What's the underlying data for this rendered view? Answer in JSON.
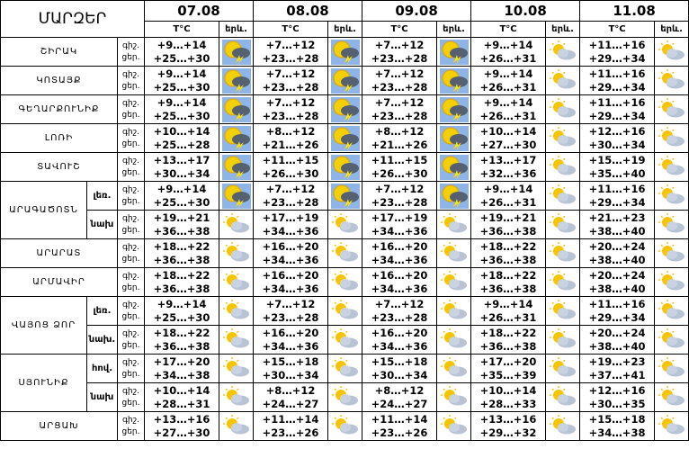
{
  "header": {
    "title": "ՄԱՐԶԵՐ",
    "dates": [
      "07.08",
      "08.08",
      "09.08",
      "10.08",
      "11.08"
    ],
    "temp_label": "T°C",
    "icon_label": "երև."
  },
  "periods": [
    "գիշ.",
    "ցեր."
  ],
  "regions": [
    {
      "name": "ՇԻՐԱԿ",
      "rows": [
        {
          "days": [
            [
              "+9…+14",
              "+25…+30"
            ],
            [
              "+7…+12",
              "+23…+28"
            ],
            [
              "+7…+12",
              "+23…+28"
            ],
            [
              "+9…+14",
              "+26…+31"
            ],
            [
              "+11…+16",
              "+29…+34"
            ]
          ]
        }
      ]
    },
    {
      "name": "ԿՈՏԱՅՔ",
      "rows": [
        {
          "days": [
            [
              "+9…+14",
              "+25…+30"
            ],
            [
              "+7…+12",
              "+23…+28"
            ],
            [
              "+7…+12",
              "+23…+28"
            ],
            [
              "+9…+14",
              "+26…+31"
            ],
            [
              "+11…+16",
              "+29…+34"
            ]
          ]
        }
      ]
    },
    {
      "name": "ԳԵՂԱՐՔՈՒՆԻՔ",
      "rows": [
        {
          "days": [
            [
              "+9…+14",
              "+25…+30"
            ],
            [
              "+7…+12",
              "+23…+28"
            ],
            [
              "+7…+12",
              "+23…+28"
            ],
            [
              "+9…+14",
              "+26…+31"
            ],
            [
              "+11…+16",
              "+29…+34"
            ]
          ]
        }
      ]
    },
    {
      "name": "ԼՈՌԻ",
      "rows": [
        {
          "days": [
            [
              "+10…+14",
              "+25…+28"
            ],
            [
              "+8…+12",
              "+21…+26"
            ],
            [
              "+8…+12",
              "+21…+26"
            ],
            [
              "+10…+14",
              "+27…+30"
            ],
            [
              "+12…+16",
              "+30…+34"
            ]
          ]
        }
      ]
    },
    {
      "name": "ՏԱՎՈՒՇ",
      "rows": [
        {
          "days": [
            [
              "+13…+17",
              "+30…+34"
            ],
            [
              "+11…+15",
              "+26…+30"
            ],
            [
              "+11…+15",
              "+26…+30"
            ],
            [
              "+13…+17",
              "+32…+36"
            ],
            [
              "+15…+19",
              "+35…+40"
            ]
          ]
        }
      ]
    },
    {
      "name": "ԱՐԱԳԱԾՈՏՆ",
      "rows": [
        {
          "zone": "լեռ.",
          "days": [
            [
              "+9…+14",
              "+25…+30"
            ],
            [
              "+7…+12",
              "+23…+28"
            ],
            [
              "+7…+12",
              "+23…+28"
            ],
            [
              "+9…+14",
              "+26…+31"
            ],
            [
              "+11…+16",
              "+29…+34"
            ]
          ]
        },
        {
          "zone": "նախ",
          "days": [
            [
              "+19…+21",
              "+36…+38"
            ],
            [
              "+17…+19",
              "+34…+36"
            ],
            [
              "+17…+19",
              "+34…+36"
            ],
            [
              "+19…+21",
              "+36…+38"
            ],
            [
              "+21…+23",
              "+38…+40"
            ]
          ]
        }
      ]
    },
    {
      "name": "ԱՐԱՐԱՏ",
      "rows": [
        {
          "days": [
            [
              "+18…+22",
              "+36…+38"
            ],
            [
              "+16…+20",
              "+34…+36"
            ],
            [
              "+16…+20",
              "+34…+36"
            ],
            [
              "+18…+22",
              "+36…+38"
            ],
            [
              "+20…+24",
              "+38…+40"
            ]
          ]
        }
      ]
    },
    {
      "name": "ԱՐՄԱՎԻՐ",
      "rows": [
        {
          "days": [
            [
              "+18…+22",
              "+36…+38"
            ],
            [
              "+16…+20",
              "+34…+36"
            ],
            [
              "+16…+20",
              "+34…+36"
            ],
            [
              "+18…+22",
              "+36…+38"
            ],
            [
              "+20…+24",
              "+38…+40"
            ]
          ]
        }
      ]
    },
    {
      "name": "ՎԱՅՈՑ ՁՈՐ",
      "rows": [
        {
          "zone": "լեռ.",
          "days": [
            [
              "+9…+14",
              "+25…+30"
            ],
            [
              "+7…+12",
              "+23…+28"
            ],
            [
              "+7…+12",
              "+23…+28"
            ],
            [
              "+9…+14",
              "+26…+31"
            ],
            [
              "+11…+16",
              "+29…+34"
            ]
          ]
        },
        {
          "zone": "նախ.",
          "days": [
            [
              "+18…+22",
              "+36…+38"
            ],
            [
              "+16…+20",
              "+34…+36"
            ],
            [
              "+16…+20",
              "+34…+36"
            ],
            [
              "+18…+22",
              "+36…+38"
            ],
            [
              "+20…+24",
              "+38…+40"
            ]
          ]
        }
      ]
    },
    {
      "name": "ՍՅՈՒՆԻՔ",
      "rows": [
        {
          "zone": "հով.",
          "days": [
            [
              "+17…+20",
              "+34…+38"
            ],
            [
              "+15…+18",
              "+30…+34"
            ],
            [
              "+15…+18",
              "+30…+34"
            ],
            [
              "+17…+20",
              "+35…+39"
            ],
            [
              "+19…+23",
              "+37…+41"
            ]
          ]
        },
        {
          "zone": "նախ",
          "days": [
            [
              "+10…+14",
              "+28…+31"
            ],
            [
              "+8…+12",
              "+24…+27"
            ],
            [
              "+8…+12",
              "+24…+27"
            ],
            [
              "+10…+14",
              "+28…+33"
            ],
            [
              "+12…+16",
              "+30…+35"
            ]
          ]
        }
      ]
    },
    {
      "name": "ԱՐՑԱԽ",
      "rows": [
        {
          "days": [
            [
              "+13…+16",
              "+27…+30"
            ],
            [
              "+11…+14",
              "+23…+26"
            ],
            [
              "+11…+14",
              "+23…+26"
            ],
            [
              "+13…+16",
              "+29…+32"
            ],
            [
              "+15…+18",
              "+34…+38"
            ]
          ]
        }
      ]
    }
  ]
}
